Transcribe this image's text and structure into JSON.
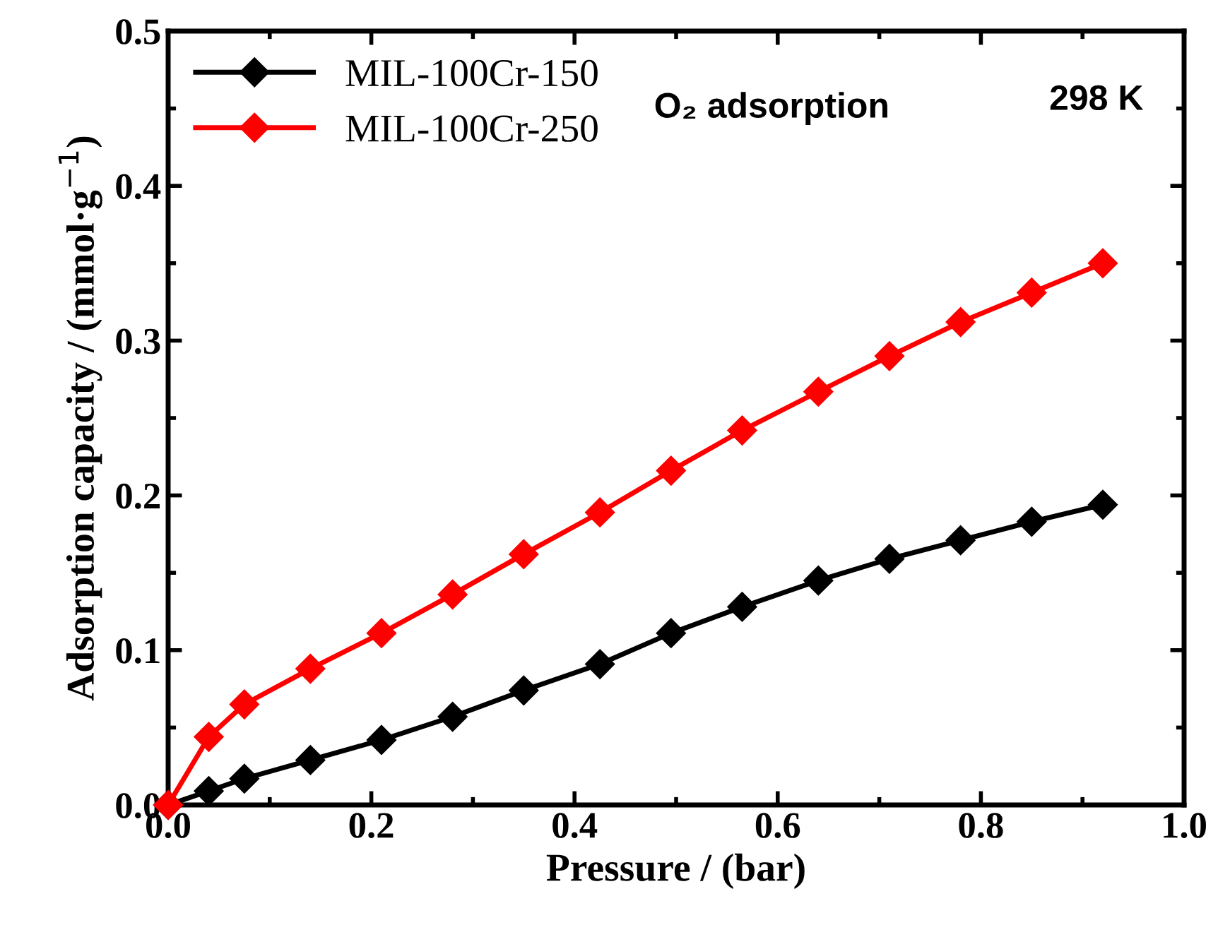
{
  "chart_data": {
    "type": "line",
    "xlabel": "Pressure / (bar)",
    "ylabel": "Adsorption capacity / (mmol·g$^{−1}$)",
    "annotations": [
      "O₂ adsorption",
      "298 K"
    ],
    "x": [
      0,
      0.04,
      0.075,
      0.14,
      0.21,
      0.28,
      0.35,
      0.425,
      0.495,
      0.565,
      0.64,
      0.71,
      0.78,
      0.85,
      0.92
    ],
    "series": [
      {
        "name": "MIL-100Cr-150",
        "color": "#000000",
        "values": [
          0,
          0.009,
          0.017,
          0.029,
          0.042,
          0.057,
          0.074,
          0.091,
          0.111,
          0.128,
          0.145,
          0.159,
          0.171,
          0.183,
          0.194
        ]
      },
      {
        "name": "MIL-100Cr-250",
        "color": "#ff0000",
        "values": [
          0,
          0.044,
          0.065,
          0.088,
          0.111,
          0.136,
          0.162,
          0.189,
          0.216,
          0.242,
          0.267,
          0.29,
          0.312,
          0.331,
          0.35
        ]
      }
    ],
    "xlim": [
      0,
      1.0
    ],
    "xticks": [
      {
        "value": 0,
        "label": "0.0"
      },
      0.2,
      0.4,
      0.6,
      0.8,
      {
        "value": 1,
        "label": "1.0"
      }
    ],
    "ylim": [
      0,
      0.5
    ],
    "yticks": [
      {
        "value": 0,
        "label": "0.0"
      },
      0.1,
      0.2,
      0.3,
      0.4,
      0.5
    ],
    "marker": "diamond",
    "line_style": "solid",
    "legend": "top left",
    "grid": false
  }
}
